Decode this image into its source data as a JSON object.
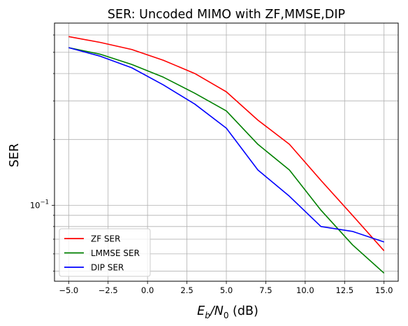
{
  "chart_data": {
    "type": "line",
    "title": "SER: Uncoded MIMO with ZF,MMSE,DIP",
    "xlabel": "$E_b/N_0$ (dB)",
    "xlabel_parts": {
      "base": "E",
      "sub1": "b",
      "slash": "/N",
      "sub2": "0",
      "suffix": " (dB)"
    },
    "ylabel": "SER",
    "yscale": "log",
    "xlim": [
      -5.9,
      15.9
    ],
    "ylim": [
      0.045,
      0.68
    ],
    "xticks": [
      -5.0,
      -2.5,
      0.0,
      2.5,
      5.0,
      7.5,
      10.0,
      12.5,
      15.0
    ],
    "xtick_labels": [
      "−5.0",
      "−2.5",
      "0.0",
      "2.5",
      "5.0",
      "7.5",
      "10.0",
      "12.5",
      "15.0"
    ],
    "ytick_major": {
      "value": 0.1,
      "label_base": "10",
      "label_exp": "−1"
    },
    "grid": true,
    "legend_position": "lower left",
    "x": [
      -5,
      -3,
      -1,
      1,
      3,
      5,
      7,
      9,
      11,
      13,
      15
    ],
    "series": [
      {
        "name": "ZF SER",
        "color": "#ff0000",
        "values": [
          0.59,
          0.555,
          0.515,
          0.46,
          0.4,
          0.33,
          0.245,
          0.19,
          0.13,
          0.09,
          0.062
        ]
      },
      {
        "name": "LMMSE SER",
        "color": "#008000",
        "values": [
          0.525,
          0.49,
          0.44,
          0.385,
          0.325,
          0.27,
          0.19,
          0.145,
          0.095,
          0.066,
          0.049
        ]
      },
      {
        "name": "DIP SER",
        "color": "#0000ff",
        "values": [
          0.525,
          0.48,
          0.425,
          0.355,
          0.29,
          0.225,
          0.145,
          0.11,
          0.08,
          0.076,
          0.068
        ]
      }
    ]
  }
}
